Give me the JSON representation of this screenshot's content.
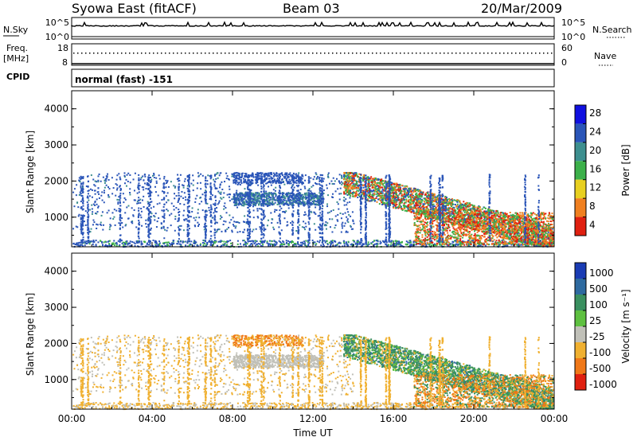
{
  "header": {
    "station": "Syowa East (fitACF)",
    "beam": "Beam 03",
    "date": "20/Mar/2009"
  },
  "top_panels": {
    "nsky_label": "N.Sky",
    "nsky_ticks": [
      "10^5",
      "10^0"
    ],
    "nsearch_label": "N.Search",
    "nsearch_ticks": [
      "10^5",
      "10^0"
    ],
    "freq_label": "Freq.",
    "freq_unit": "[MHz]",
    "freq_ticks": [
      "18",
      "8"
    ],
    "nave_label": "Nave",
    "nave_ticks": [
      "60",
      "0"
    ],
    "cpid_label": "CPID",
    "cpid_value": "normal (fast) -151"
  },
  "chart_data": [
    {
      "type": "heatmap",
      "name": "power",
      "ylabel": "Slant Range [km]",
      "xlabel": "",
      "ylim": [
        180,
        4500
      ],
      "y_ticks": [
        "1000",
        "2000",
        "3000",
        "4000"
      ],
      "x_ticks": [
        "00:00",
        "04:00",
        "08:00",
        "12:00",
        "16:00",
        "20:00",
        "00:00"
      ],
      "colorbar_label": "Power [dB]",
      "colorbar_ticks": [
        "4",
        "8",
        "12",
        "16",
        "20",
        "24",
        "28"
      ],
      "colorbar_colors": [
        "#1010e0",
        "#2a55b8",
        "#3d8f8f",
        "#3cb04a",
        "#e8d020",
        "#f08020",
        "#e02010"
      ]
    },
    {
      "type": "heatmap",
      "name": "velocity",
      "ylabel": "Slant Range [km]",
      "xlabel": "Time UT",
      "ylim": [
        180,
        4500
      ],
      "y_ticks": [
        "1000",
        "2000",
        "3000",
        "4000"
      ],
      "x_ticks": [
        "00:00",
        "04:00",
        "08:00",
        "12:00",
        "16:00",
        "20:00",
        "00:00"
      ],
      "colorbar_label": "Velocity [m s⁻¹]",
      "colorbar_ticks": [
        "1000",
        "500",
        "100",
        "25",
        "-25",
        "-100",
        "-500",
        "-1000"
      ],
      "colorbar_colors": [
        "#1a3cb4",
        "#2e6aa0",
        "#3a9060",
        "#5ec040",
        "#c0c0b8",
        "#f0b030",
        "#f07818",
        "#e02010"
      ]
    }
  ]
}
